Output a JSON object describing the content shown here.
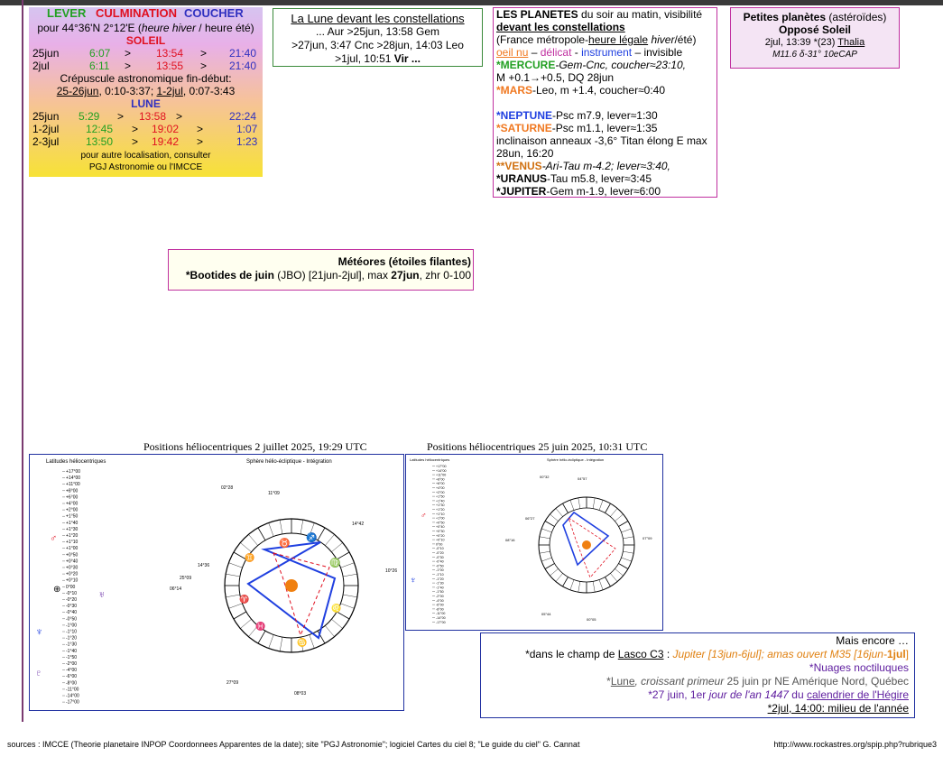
{
  "sun": {
    "h_lever": "LEVER",
    "h_culm": "CULMINATION",
    "h_couch": "COUCHER",
    "location": "pour 44°36'N  2°12'E (",
    "location_em": "heure hiver",
    "location_mid": " / heure été)",
    "soleil_title": "SOLEIL",
    "rows": [
      {
        "date": "25jun",
        "rise": "6:07",
        "culm": "13:54",
        "set": "21:40"
      },
      {
        "date": "2jul",
        "rise": "6:11",
        "culm": "13:55",
        "set": "21:40"
      }
    ],
    "arrow": ">",
    "twilight_title": "Crépuscule astronomique fin-début:",
    "twilight_1": "25-26jun",
    "twilight_1v": ", 0:10-3:37; ",
    "twilight_2": "1-2jul",
    "twilight_2v": ", 0:07-3:43",
    "lune_title": "LUNE",
    "moon_rows": [
      {
        "date": "25jun",
        "rise": "5:29",
        "culm": "13:58",
        "set": "22:24"
      },
      {
        "date": "1-2jul",
        "rise": "12:45",
        "culm": "19:02",
        "set": "1:07"
      },
      {
        "date": "2-3jul",
        "rise": "13:50",
        "culm": "19:42",
        "set": "1:23"
      }
    ],
    "note_1": "pour autre localisation, consulter",
    "note_2": "PGJ Astronomie ou l'IMCCE"
  },
  "moon_const": {
    "title": "La Lune devant les constellations",
    "l1": "... Aur >25jun, 13:58 Gem",
    "l2": ">27jun, 3:47 Cnc >28jun, 14:03 Leo",
    "l3a": ">1jul, 10:51 ",
    "l3b": "Vir ..."
  },
  "planets": {
    "title": "LES PLANETES",
    "title_rest": " du soir au matin, visibilité",
    "subtitle": "devant les constellations",
    "region": "(France métropole-",
    "region_u": "heure légale",
    "region_em": " hiver",
    "region_end": "/été)",
    "vis_oeil": "oeil nu",
    "vis_sep1": " – ",
    "vis_delicat": "délicat",
    "vis_sep2": " - ",
    "vis_instr": "instrument",
    "vis_sep3": " – invisible",
    "mercure": "*MERCURE",
    "mercure_rest": "-Gem-Cnc, coucher≈23:10,",
    "mercure_l2": "M +0.1→+0.5,  DQ 28jun",
    "mars": "*MARS",
    "mars_rest": "-Leo, m +1.4,  coucher≈0:40",
    "neptune": "*NEPTUNE",
    "neptune_rest": "-Psc m7.9, lever≈1:30",
    "saturne": "*SATURNE",
    "saturne_rest": "-Psc m1.1, lever≈1:35",
    "saturne_l2": " inclinaison anneaux -3,6° Titan élong E max",
    "saturne_l3": "28un, 16:20",
    "venus": "**VENUS",
    "venus_rest": "-Ari-Tau m-4.2; lever≈3:40,",
    "uranus": "*URANUS",
    "uranus_rest": "-Tau m5.8, lever≈3:45",
    "jupiter": "*JUPITER",
    "jupiter_rest": "-Gem m-1.9, lever≈6:00"
  },
  "asteroids": {
    "title": "Petites planètes",
    "title_rest": " (astéroïdes)",
    "sub": "Opposé Soleil",
    "l1": "2jul, 13:39 *(23) ",
    "l1_u": "Thalia",
    "l2": "M11.6  δ-31° 10eCAP"
  },
  "meteors": {
    "title": "Météores (étoiles filantes)",
    "l1a": "*Bootides de juin",
    "l1b": " (JBO) [21jun-2jul], max ",
    "l1c": "27jun",
    "l1d": ", zhr 0-100"
  },
  "helio": {
    "title1": "Positions héliocentriques 2 juillet 2025, 19:29 UTC",
    "title2": "Positions héliocentriques 25 juin 2025, 10:31 UTC",
    "lat_title": "Latitudes héliocentriques",
    "sphere_title": "Sphère hélio-écliptique - Intégration",
    "lat_ticks": [
      "+17°00",
      "+14°00",
      "+11°00",
      "+8°00",
      "+6°00",
      "+4°00",
      "+2°00",
      "+1°50",
      "+1°40",
      "+1°30",
      "+1°20",
      "+1°10",
      "+1°00",
      "+0°50",
      "+0°40",
      "+0°30",
      "+0°20",
      "+0°10",
      "0°00",
      "-0°10",
      "-0°20",
      "-0°30",
      "-0°40",
      "-0°50",
      "-1°00",
      "-1°10",
      "-1°20",
      "-1°30",
      "-1°40",
      "-1°50",
      "-2°00",
      "-4°00",
      "-6°00",
      "-8°00",
      "-11°00",
      "-14°00",
      "-17°00"
    ],
    "deg_labels_1": [
      "02°28",
      "11°09",
      "14°42",
      "10°26",
      "14°36",
      "25°09",
      "06°14",
      "27°09",
      "08°03"
    ],
    "deg_labels_2": [
      "00°32",
      "04°57",
      "06°27",
      "07°09",
      "08°16",
      "05°44",
      "00°05"
    ]
  },
  "more": {
    "title": "Mais encore …",
    "l1a": "*dans le champ de ",
    "l1b": "Lasco C3",
    "l1c": " : ",
    "l1d": "Jupiter [13jun-6jul]; amas ouvert M35 [16jun-",
    "l1e": "1jul",
    "l1f": "]",
    "l2": "*Nuages noctiluques",
    "l3a": "*",
    "l3b": "Lune",
    "l3c": ", croissant primeur",
    "l3d": " 25 juin pr NE Amérique Nord, Québec",
    "l4a": "*27 juin, 1er ",
    "l4b": "jour de l'an 1447",
    "l4c": " du ",
    "l4d": "calendrier de l'Hégire",
    "l5": "*2jul, 14:00: milieu de l'année"
  },
  "footer": {
    "sources": "sources : IMCCE (Theorie planetaire INPOP Coordonnees Apparentes de la date); site \"PGJ Astronomie\"; logiciel  Cartes du ciel 8; \"Le guide du ciel\" G. Cannat",
    "url": "http://www.rockastres.org/spip.php?rubrique3"
  },
  "colors": {
    "accent": "#c030a0",
    "lever": "#22a022",
    "culmination": "#e01020",
    "coucher": "#3030c0"
  }
}
